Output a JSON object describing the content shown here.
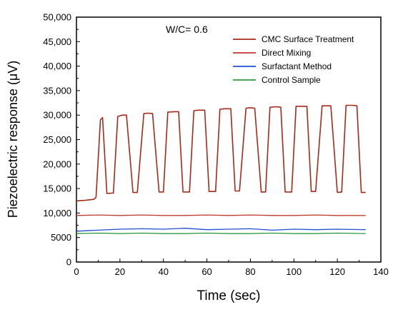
{
  "chart_data": {
    "type": "line",
    "annotation": "W/C= 0.6",
    "xlabel": "Time (sec)",
    "ylabel": "Piezoelectric response (μV)",
    "xlim": [
      0,
      140
    ],
    "ylim": [
      0,
      50000
    ],
    "xticks": [
      0,
      20,
      40,
      60,
      80,
      100,
      120,
      140
    ],
    "yticks": [
      0,
      5000,
      10000,
      15000,
      20000,
      25000,
      30000,
      35000,
      40000,
      45000,
      50000
    ],
    "xtick_labels": [
      "0",
      "20",
      "40",
      "60",
      "80",
      "100",
      "120",
      "140"
    ],
    "ytick_labels": [
      "0",
      "5000",
      "10,000",
      "15,000",
      "20,000",
      "25,000",
      "30,000",
      "35,000",
      "40,000",
      "45,000",
      "50,000"
    ],
    "grid": false,
    "legend_position": "top-right",
    "series": [
      {
        "name": "CMC Surface Treatment",
        "color": "#a52a1a",
        "x": [
          0,
          4,
          8,
          9,
          11,
          12,
          14,
          17,
          19,
          21,
          23,
          26,
          28,
          31,
          33,
          35,
          38,
          40,
          42,
          45,
          47,
          49,
          52,
          54,
          56,
          59,
          61,
          64,
          66,
          68,
          71,
          73,
          75,
          78,
          80,
          82,
          85,
          87,
          89,
          92,
          94,
          96,
          99,
          101,
          103,
          106,
          108,
          110,
          113,
          115,
          117,
          120,
          122,
          124,
          127,
          129,
          131,
          133
        ],
        "y": [
          12500,
          12600,
          12800,
          13200,
          29000,
          29500,
          14000,
          14100,
          29700,
          30000,
          30000,
          14200,
          14200,
          30300,
          30400,
          30300,
          14300,
          14300,
          30600,
          30700,
          30700,
          14300,
          14300,
          30900,
          31000,
          31000,
          14400,
          14400,
          31200,
          31300,
          31300,
          14500,
          14500,
          31400,
          31500,
          31400,
          14300,
          14300,
          31600,
          31700,
          31600,
          14300,
          14300,
          31800,
          31800,
          31800,
          14400,
          14400,
          31900,
          31900,
          31900,
          14200,
          14300,
          32000,
          32000,
          31900,
          14200,
          14200
        ]
      },
      {
        "name": "Direct Mixing",
        "color": "#c0392b",
        "x": [
          0,
          10,
          20,
          30,
          40,
          50,
          60,
          70,
          80,
          90,
          100,
          110,
          120,
          133
        ],
        "y": [
          9500,
          9600,
          9500,
          9600,
          9500,
          9500,
          9600,
          9500,
          9600,
          9500,
          9500,
          9600,
          9500,
          9500
        ]
      },
      {
        "name": "Surfactant Method",
        "color": "#1f4fd1",
        "x": [
          0,
          10,
          20,
          30,
          40,
          50,
          60,
          70,
          80,
          90,
          100,
          110,
          120,
          133
        ],
        "y": [
          6300,
          6500,
          6700,
          6800,
          6700,
          6900,
          6600,
          6700,
          6800,
          6500,
          6700,
          6600,
          6700,
          6600
        ]
      },
      {
        "name": "Control Sample",
        "color": "#2e9a3e",
        "x": [
          0,
          10,
          20,
          30,
          40,
          50,
          60,
          70,
          80,
          90,
          100,
          110,
          120,
          133
        ],
        "y": [
          5800,
          5900,
          5800,
          5900,
          5800,
          5800,
          5900,
          5800,
          5800,
          5900,
          5800,
          5800,
          5900,
          5800
        ]
      }
    ]
  }
}
